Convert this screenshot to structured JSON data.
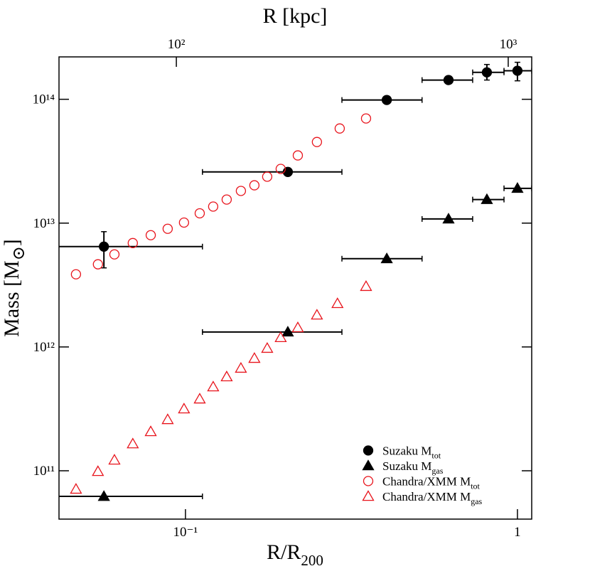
{
  "chart_data": {
    "type": "scatter",
    "xscale": "log",
    "yscale": "log",
    "xlabel": {
      "text": "R/R",
      "sub": "200"
    },
    "ylabel": {
      "text": "Mass [M",
      "sub": "⊙",
      "end": "]"
    },
    "x2label": "R [kpc]",
    "xlim": [
      0.0416,
      1.104
    ],
    "ylim": [
      40700000000.0,
      220000000000000.0
    ],
    "x2lim": [
      44.3,
      1177
    ],
    "xticks": [
      {
        "value": 0.1,
        "label": "10⁻¹"
      },
      1
    ],
    "x2ticks": [
      {
        "value": 100,
        "label": "10²"
      },
      {
        "value": 1000,
        "label": "10³"
      }
    ],
    "yticks": [
      {
        "value": 100000000000.0,
        "label": "10¹¹"
      },
      {
        "value": 1000000000000.0,
        "label": "10¹²"
      },
      {
        "value": 10000000000000.0,
        "label": "10¹³"
      },
      {
        "value": 100000000000000.0,
        "label": "10¹⁴"
      }
    ],
    "legend": "lower right",
    "series": [
      {
        "name": "Suzaku M",
        "sub": "tot",
        "marker": "circle",
        "filled": true,
        "color": "#000000",
        "x": [
          0.0568,
          0.2034,
          0.404,
          0.62,
          0.809,
          1.0
        ],
        "values": [
          6460000000000.0,
          25900000000000.0,
          98700000000000.0,
          143000000000000.0,
          165000000000000.0,
          170000000000000.0
        ],
        "x_low": [
          0.04,
          0.1125,
          0.296,
          0.516,
          0.733,
          0.911
        ],
        "x_high": [
          0.1125,
          0.296,
          0.516,
          0.733,
          0.911,
          1.104
        ],
        "y_low": [
          4350000000000.0,
          null,
          null,
          null,
          143000000000000.0,
          141000000000000.0
        ],
        "y_high": [
          8530000000000.0,
          null,
          null,
          null,
          191000000000000.0,
          199000000000000.0
        ]
      },
      {
        "name": "Suzaku M",
        "sub": "gas",
        "marker": "triangle",
        "filled": true,
        "color": "#000000",
        "x": [
          0.0568,
          0.2034,
          0.404,
          0.62,
          0.809,
          1.0
        ],
        "values": [
          62100000000.0,
          1320000000000.0,
          5160000000000.0,
          10800000000000.0,
          15500000000000.0,
          19100000000000.0
        ],
        "x_low": [
          0.04,
          0.1125,
          0.296,
          0.516,
          0.733,
          0.911
        ],
        "x_high": [
          0.1125,
          0.296,
          0.516,
          0.733,
          0.911,
          1.104
        ]
      },
      {
        "name": "Chandra/XMM M",
        "sub": "tot",
        "marker": "circle",
        "filled": false,
        "color": "#e8141c",
        "x": [
          0.0468,
          0.0545,
          0.0611,
          0.0694,
          0.0786,
          0.0884,
          0.099,
          0.1104,
          0.1212,
          0.1331,
          0.1469,
          0.1613,
          0.1763,
          0.1936,
          0.218,
          0.2489,
          0.2915,
          0.3499
        ],
        "values": [
          3860000000000.0,
          4650000000000.0,
          5590000000000.0,
          6900000000000.0,
          7990000000000.0,
          9000000000000.0,
          10100000000000.0,
          12000000000000.0,
          13600000000000.0,
          15500000000000.0,
          18200000000000.0,
          20200000000000.0,
          23700000000000.0,
          27400000000000.0,
          35200000000000.0,
          45200000000000.0,
          58100000000000.0,
          70000000000000.0
        ]
      },
      {
        "name": "Chandra/XMM M",
        "sub": "gas",
        "marker": "triangle",
        "filled": false,
        "color": "#e8141c",
        "x": [
          0.0468,
          0.0545,
          0.0611,
          0.0694,
          0.0786,
          0.0884,
          0.099,
          0.1104,
          0.1212,
          0.1331,
          0.1469,
          0.1613,
          0.1763,
          0.1936,
          0.218,
          0.2489,
          0.287,
          0.3499
        ],
        "values": [
          71000000000.0,
          98700000000.0,
          122000000000.0,
          165000000000.0,
          207000000000.0,
          259000000000.0,
          316000000000.0,
          380000000000.0,
          476000000000.0,
          574000000000.0,
          673000000000.0,
          809000000000.0,
          975000000000.0,
          1190000000000.0,
          1430000000000.0,
          1810000000000.0,
          2240000000000.0,
          3080000000000.0
        ]
      }
    ]
  }
}
